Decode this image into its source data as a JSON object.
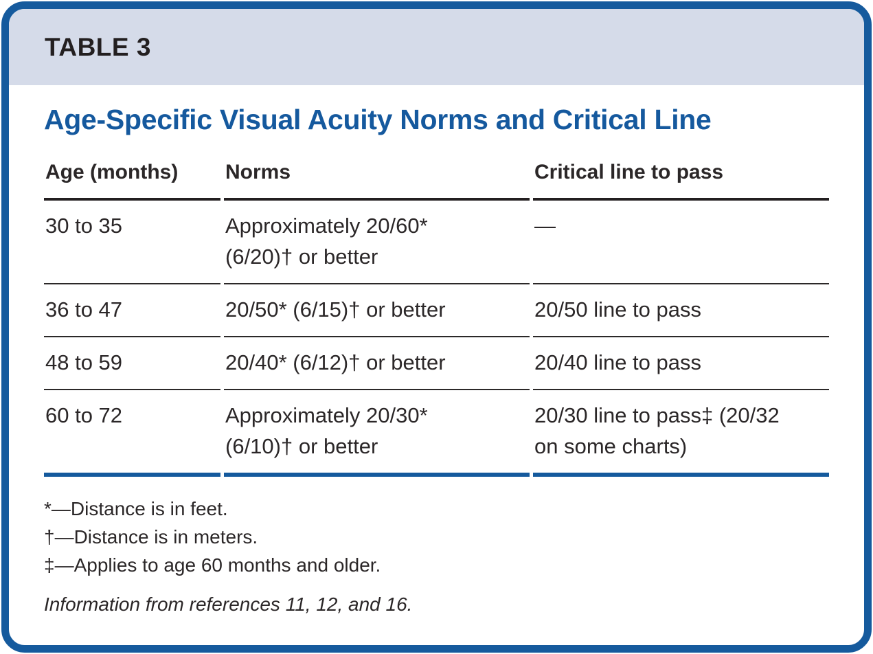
{
  "label": "TABLE 3",
  "title": "Age-Specific Visual Acuity Norms and Critical Line",
  "columns": [
    "Age (months)",
    "Norms",
    "Critical line to pass"
  ],
  "rows": [
    {
      "age": "30 to 35",
      "norms": "Approximately 20/60*\n(6/20)† or better",
      "critical": "—"
    },
    {
      "age": "36 to 47",
      "norms": "20/50* (6/15)† or better",
      "critical": "20/50 line to pass"
    },
    {
      "age": "48 to 59",
      "norms": "20/40* (6/12)† or better",
      "critical": "20/40 line to pass"
    },
    {
      "age": "60 to 72",
      "norms": "Approximately 20/30*\n(6/10)† or better",
      "critical": "20/30 line to pass‡ (20/32\non some charts)"
    }
  ],
  "footnotes": [
    "*—Distance is in feet.",
    "†—Distance is in meters.",
    "‡—Applies to age 60 months and older."
  ],
  "source": "Information from references 11, 12, and 16.",
  "colors": {
    "frame_border": "#155a9d",
    "band_background": "#d5dbe9",
    "title_text": "#15599e",
    "body_text": "#2b2728",
    "header_rule": "#231f20",
    "bottom_rule": "#155a9d"
  },
  "chart_data": {
    "type": "table",
    "title": "Age-Specific Visual Acuity Norms and Critical Line",
    "columns": [
      "Age (months)",
      "Norms",
      "Critical line to pass"
    ],
    "rows": [
      [
        "30 to 35",
        "Approximately 20/60* (6/20)† or better",
        "—"
      ],
      [
        "36 to 47",
        "20/50* (6/15)† or better",
        "20/50 line to pass"
      ],
      [
        "48 to 59",
        "20/40* (6/12)† or better",
        "20/40 line to pass"
      ],
      [
        "60 to 72",
        "Approximately 20/30* (6/10)† or better",
        "20/30 line to pass‡ (20/32 on some charts)"
      ]
    ]
  }
}
